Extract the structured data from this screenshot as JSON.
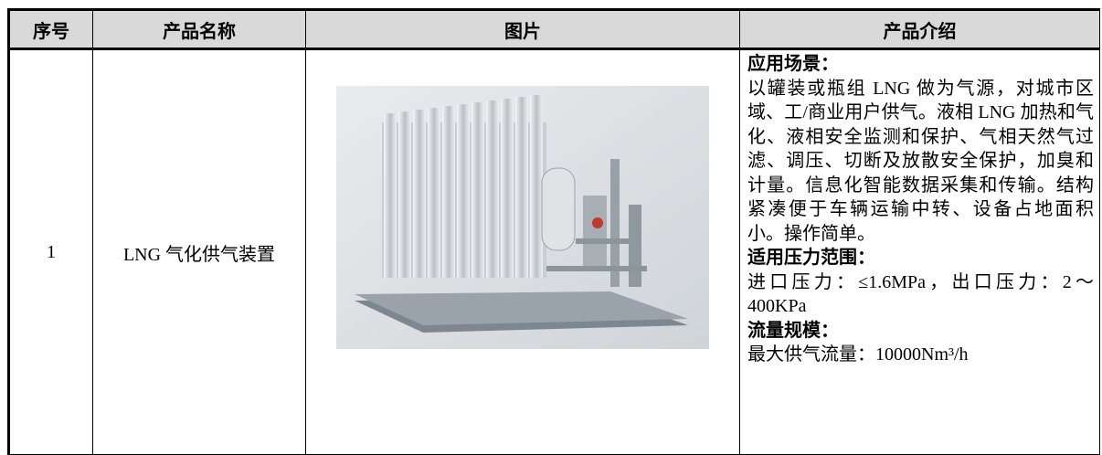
{
  "table": {
    "headers": [
      "序号",
      "产品名称",
      "图片",
      "产品介绍"
    ],
    "rows": [
      {
        "index": "1",
        "name": "LNG 气化供气装置",
        "sections": [
          {
            "heading": "应用场景：",
            "text": "以罐装或瓶组 LNG 做为气源，对城市区域、工/商业用户供气。液相 LNG 加热和气化、液相安全监测和保护、气相天然气过滤、调压、切断及放散安全保护，加臭和计量。信息化智能数据采集和传输。结构紧凑便于车辆运输中转、设备占地面积小。操作简单。"
          },
          {
            "heading": "适用压力范围：",
            "text": "进口压力：≤1.6MPa，出口压力：2～400KPa"
          },
          {
            "heading": "流量规模：",
            "text": "最大供气流量：10000Nm³/h"
          }
        ]
      }
    ]
  }
}
